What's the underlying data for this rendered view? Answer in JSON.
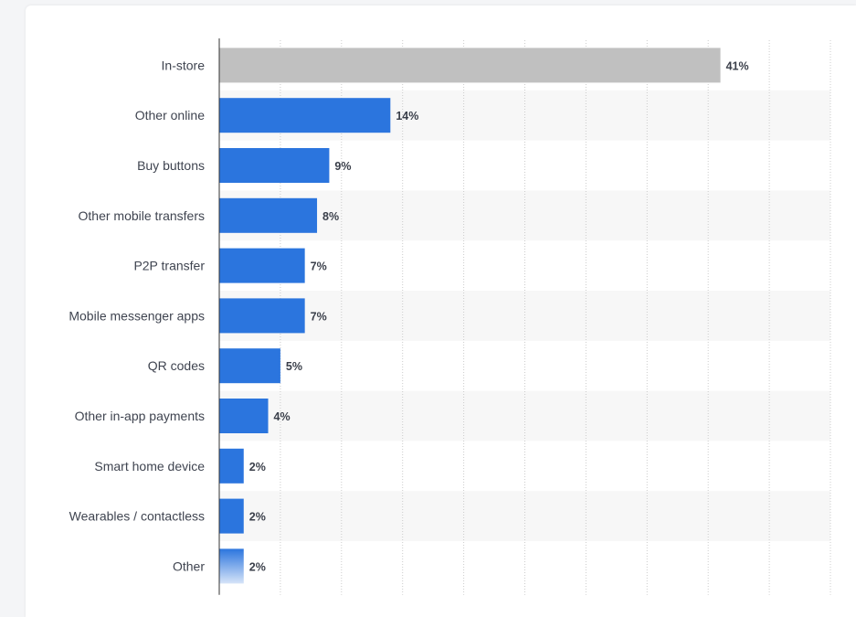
{
  "chart_data": {
    "type": "bar",
    "orientation": "horizontal",
    "categories": [
      "In-store",
      "Other online",
      "Buy buttons",
      "Other mobile transfers",
      "P2P transfer",
      "Mobile messenger apps",
      "QR codes",
      "Other in-app payments",
      "Smart home device",
      "Wearables / contactless",
      "Other"
    ],
    "values": [
      41,
      14,
      9,
      8,
      7,
      7,
      5,
      4,
      2,
      2,
      2
    ],
    "value_labels": [
      "41%",
      "14%",
      "9%",
      "8%",
      "7%",
      "7%",
      "5%",
      "4%",
      "2%",
      "2%",
      "2%"
    ],
    "unit": "%",
    "xlim": [
      0,
      50
    ],
    "grid": true,
    "colors": {
      "highlight": "#c0c0c0",
      "bar": "#2b75de",
      "band": "#f7f7f7",
      "grid": "#cccccc",
      "axis": "#333333"
    }
  }
}
